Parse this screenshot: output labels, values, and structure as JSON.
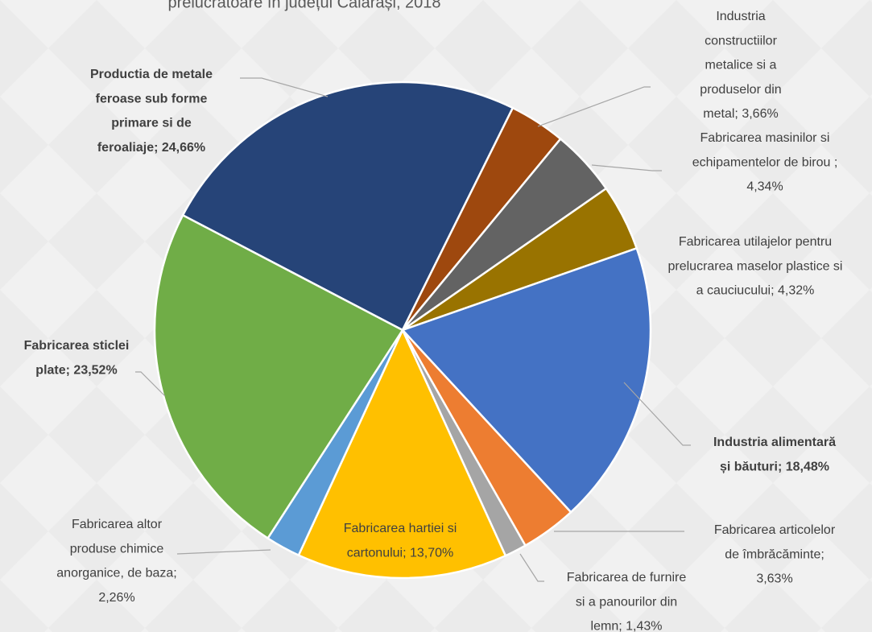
{
  "chart_data": {
    "type": "pie",
    "title": "prelucrătoare în județul Călărași, 2018",
    "categories": [
      "Productia de metale feroase sub forme primare si de feroaliaje;",
      "Industria constructiilor metalice si a produselor din metal;",
      "Fabricarea masinilor si echipamentelor de birou ;",
      "Fabricarea utilajelor pentru prelucrarea maselor plastice si a cauciucului;",
      "Industria alimentară și băuturi;",
      "Fabricarea articolelor de îmbrăcăminte;",
      "Fabricarea de furnire si a panourilor din lemn;",
      "Fabricarea hartiei si cartonului;",
      "Fabricarea altor produse chimice anorganice, de baza;",
      "Fabricarea sticlei plate;"
    ],
    "values": [
      24.66,
      3.66,
      4.34,
      4.32,
      18.48,
      3.63,
      1.43,
      13.7,
      2.26,
      23.52
    ],
    "value_labels": [
      "24,66%",
      "3,66%",
      "4,34%",
      "4,32%",
      "18,48%",
      "3,63%",
      "1,43%",
      "13,70%",
      "2,26%",
      "23,52%"
    ],
    "colors": [
      "#264478",
      "#9e480e",
      "#636363",
      "#997300",
      "#4472c4",
      "#ed7d31",
      "#a5a5a5",
      "#ffc000",
      "#5b9bd5",
      "#70ad47"
    ]
  }
}
